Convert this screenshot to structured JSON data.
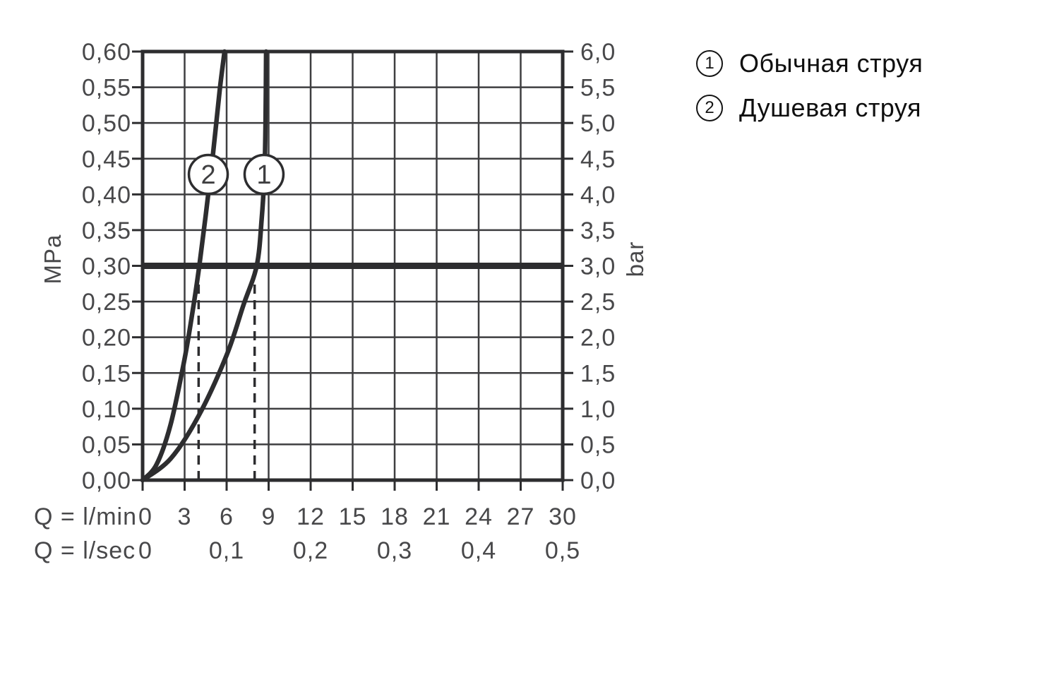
{
  "colors": {
    "ink": "#2d2d2f",
    "grid": "#3e3e40",
    "axis_text": "#48484a",
    "marker_text": "#3f3f41",
    "legend_text": "#0f0f0f",
    "background": "#ffffff"
  },
  "legend": {
    "items": [
      {
        "marker": "1",
        "label": "Обычная струя"
      },
      {
        "marker": "2",
        "label": "Душевая струя"
      }
    ]
  },
  "chart_data": {
    "type": "line",
    "title": "",
    "grid": true,
    "legend_position": "top-right-outside",
    "x_axis": {
      "row1_label": "Q = l/min",
      "row1_ticks": [
        "0",
        "3",
        "6",
        "9",
        "12",
        "15",
        "18",
        "21",
        "24",
        "27",
        "30"
      ],
      "row2_label": "Q = l/sec",
      "row2_ticks": [
        {
          "label": "0",
          "at_lmin": 0
        },
        {
          "label": "0,1",
          "at_lmin": 6
        },
        {
          "label": "0,2",
          "at_lmin": 12
        },
        {
          "label": "0,3",
          "at_lmin": 18
        },
        {
          "label": "0,4",
          "at_lmin": 24
        },
        {
          "label": "0,5",
          "at_lmin": 30
        }
      ],
      "range_lmin": [
        0,
        30
      ],
      "grid_step_lmin": 3
    },
    "y_axis_left": {
      "unit": "MPa",
      "ticks": [
        "0,60",
        "0,55",
        "0,50",
        "0,45",
        "0,40",
        "0,35",
        "0,30",
        "0,25",
        "0,20",
        "0,15",
        "0,10",
        "0,05",
        "0,00"
      ],
      "range_mpa": [
        0,
        0.6
      ],
      "grid_step_mpa": 0.05
    },
    "y_axis_right": {
      "unit": "bar",
      "ticks": [
        "6,0",
        "5,5",
        "5,0",
        "4,5",
        "4,0",
        "3,5",
        "3,0",
        "2,5",
        "2,0",
        "1,5",
        "1,0",
        "0,5",
        "0,0"
      ],
      "range_bar": [
        0,
        6
      ]
    },
    "reference_line": {
      "mpa": 0.3,
      "bar": 3.0
    },
    "drop_lines": [
      {
        "x_lmin": 4.0,
        "top_mpa": 0.277
      },
      {
        "x_lmin": 8.0,
        "top_mpa": 0.277
      }
    ],
    "series": [
      {
        "id": "1",
        "name": "Обычная струя",
        "marker": {
          "label": "1",
          "x_lmin": 8.67,
          "y_mpa": 0.428
        },
        "points_lmin_mpa": [
          [
            0,
            0
          ],
          [
            2,
            0.03
          ],
          [
            4,
            0.09
          ],
          [
            6,
            0.175
          ],
          [
            7.2,
            0.245
          ],
          [
            8.15,
            0.3
          ],
          [
            8.5,
            0.365
          ],
          [
            8.7,
            0.43
          ],
          [
            8.78,
            0.5
          ],
          [
            8.82,
            0.6
          ]
        ]
      },
      {
        "id": "2",
        "name": "Душевая струя",
        "marker": {
          "label": "2",
          "x_lmin": 4.69,
          "y_mpa": 0.428
        },
        "points_lmin_mpa": [
          [
            0,
            0
          ],
          [
            1,
            0.022
          ],
          [
            2,
            0.078
          ],
          [
            3,
            0.17
          ],
          [
            3.6,
            0.24
          ],
          [
            4.05,
            0.3
          ],
          [
            4.5,
            0.37
          ],
          [
            5,
            0.452
          ],
          [
            5.5,
            0.545
          ],
          [
            5.85,
            0.6
          ]
        ]
      }
    ]
  }
}
